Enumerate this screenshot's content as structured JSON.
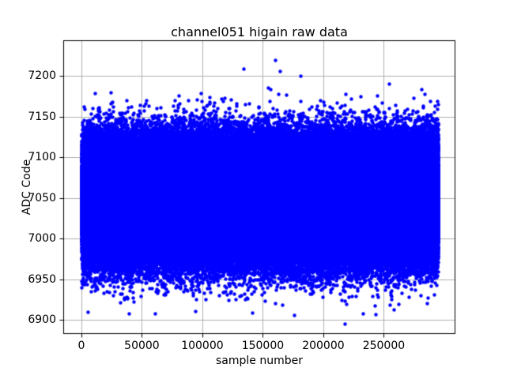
{
  "chart_data": {
    "type": "scatter",
    "title": "channel051 higain raw data",
    "xlabel": "sample number",
    "ylabel": "ADC Code",
    "xlim": [
      -15000,
      309200
    ],
    "ylim": [
      6883,
      7244
    ],
    "xticks": [
      0,
      50000,
      100000,
      150000,
      200000,
      250000
    ],
    "yticks": [
      6900,
      6950,
      7000,
      7050,
      7100,
      7150,
      7200
    ],
    "grid": true,
    "legend": false,
    "marker_color": "#0000ff",
    "grid_color": "#b0b0b0",
    "axis_color": "#000000",
    "background_color": "#ffffff",
    "marker_diameter_px": 4.4,
    "x_range": [
      0,
      295000
    ],
    "n_samples_approx": 295000,
    "distribution": {
      "mean": 7048,
      "std": 33,
      "dense_band": [
        6950,
        7150
      ],
      "observed_min": 6896,
      "observed_max": 7220
    },
    "outliers_high": [
      [
        134000,
        7209
      ],
      [
        154000,
        7186
      ],
      [
        156000,
        7184
      ],
      [
        160000,
        7220
      ],
      [
        164000,
        7206
      ],
      [
        181000,
        7200
      ],
      [
        254000,
        7191
      ],
      [
        281000,
        7184
      ]
    ],
    "outliers_low": [
      [
        5200,
        6910
      ],
      [
        39000,
        6908
      ],
      [
        61000,
        6908
      ],
      [
        94000,
        6911
      ],
      [
        141000,
        6909
      ],
      [
        176000,
        6906
      ],
      [
        218000,
        6896
      ],
      [
        233000,
        6908
      ],
      [
        243000,
        6907
      ],
      [
        258000,
        6913
      ]
    ]
  }
}
